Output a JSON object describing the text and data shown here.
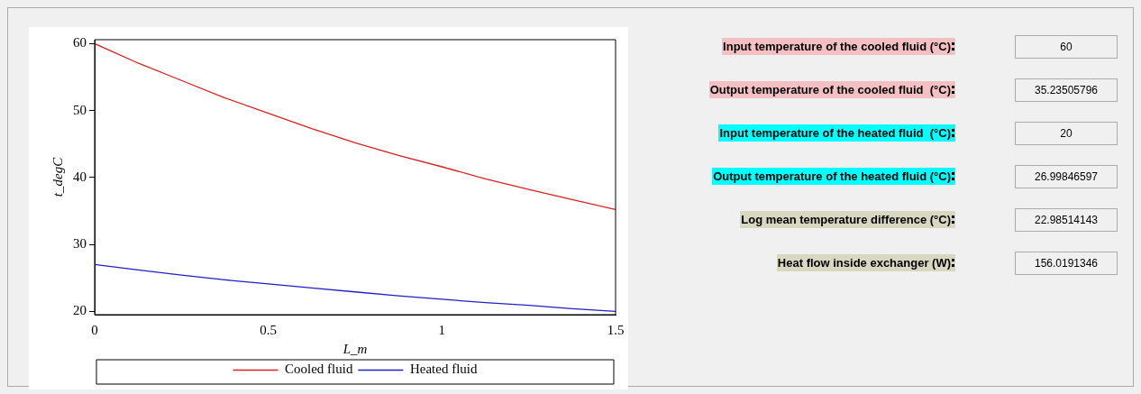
{
  "chart_data": [
    {
      "type": "line",
      "xlabel": "L_m",
      "ylabel": "t_degC",
      "xlim": [
        0,
        1.5
      ],
      "xticks": [
        0,
        0.5,
        1,
        1.5
      ],
      "ylim": [
        19.5,
        60.6
      ],
      "yticks": [
        20,
        30,
        40,
        50,
        60
      ],
      "grid": false,
      "legend": "bottom",
      "marker": "none",
      "line_style": "solid",
      "x": [
        0,
        0.125,
        0.25,
        0.375,
        0.5,
        0.625,
        0.75,
        0.875,
        1,
        1.125,
        1.25,
        1.375,
        1.5
      ],
      "series": [
        {
          "name": "Cooled fluid",
          "color": "#e02020",
          "values": [
            60,
            57.1,
            54.5,
            51.9,
            49.6,
            47.3,
            45.2,
            43.3,
            41.6,
            39.8,
            38.2,
            36.7,
            35.2
          ]
        },
        {
          "name": "Heated fluid",
          "color": "#2020c8",
          "values": [
            27.0,
            26.2,
            25.4,
            24.7,
            24.1,
            23.5,
            22.9,
            22.3,
            21.8,
            21.3,
            20.9,
            20.4,
            20.0
          ]
        }
      ]
    },
    {
      "type": "other",
      "categories": [
        "Input temperature of the cooled fluid (°C)",
        "Output temperature of the cooled fluid  (°C)",
        "Input temperature of the heated fluid  (°C)",
        "Output temperature of the heated fluid (°C)",
        "Log mean temperature difference (°C)",
        "Heat flow inside exchanger (W)"
      ],
      "value_labels": [
        "60",
        "35.23505796",
        "20",
        "26.99846597",
        "22.98514143",
        "156.0191346"
      ],
      "colors": [
        "#f4c0c4",
        "#f4c0c4",
        "#00ffff",
        "#00ffff",
        "#d8d8c0",
        "#d8d8c0"
      ]
    }
  ]
}
